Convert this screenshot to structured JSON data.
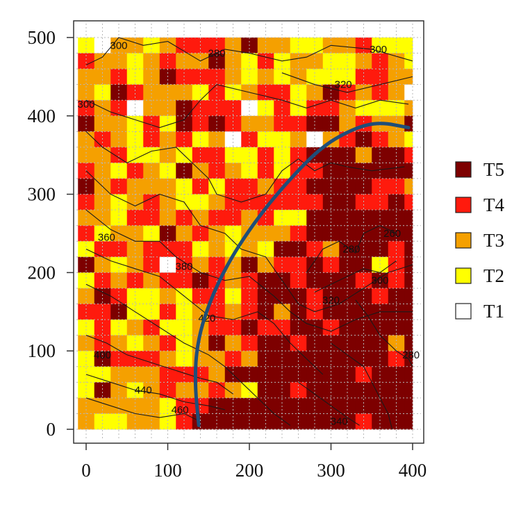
{
  "chart_data": {
    "type": "heatmap",
    "title": "",
    "xlabel": "",
    "ylabel": "",
    "xlim": [
      0,
      400
    ],
    "ylim": [
      0,
      500
    ],
    "x_ticks": [
      "0",
      "100",
      "200",
      "300",
      "400"
    ],
    "y_ticks": [
      "0",
      "100",
      "200",
      "300",
      "400",
      "500"
    ],
    "grid": true,
    "legend_position": "right",
    "categories": [
      {
        "name": "T5",
        "color": "#7d0000"
      },
      {
        "name": "T4",
        "color": "#ff1a0d"
      },
      {
        "name": "T3",
        "color": "#f5a000"
      },
      {
        "name": "T2",
        "color": "#ffff00"
      },
      {
        "name": "T1",
        "color": "#ffffff"
      }
    ],
    "cell_size": 20,
    "grid_cells": [
      "2133234443533223342223",
      "4332343353242332234322",
      "3342354443232322244333",
      "3254333242344235434315",
      "4341335444124244322234",
      "5332425454334455343355",
      "3432434231422313454324",
      "3342232442242455535543",
      "4324325343242445555555",
      "5343332424434455554434",
      "4323432234444445544544",
      "3324434344342255555553",
      "4233253432333455555555",
      "2443444232325543555454",
      "5323414343534454552455",
      "2434344543455455545455",
      "3542232442455545554555",
      "4452242343453545555555",
      "2423422344544554555555",
      "3432342353455455555355",
      "2544432334355555555455",
      "2233344435555555545555",
      "2532343343255455555555",
      "3333324455555555555555",
      "3223324555555555545555"
    ],
    "contours": [
      {
        "level": "300",
        "label_at": [
          40,
          490
        ]
      },
      {
        "level": "280",
        "label_at": [
          160,
          480
        ]
      },
      {
        "level": "300",
        "label_at": [
          358,
          485
        ]
      },
      {
        "level": "320",
        "label_at": [
          315,
          440
        ]
      },
      {
        "level": "300",
        "label_at": [
          0,
          415
        ]
      },
      {
        "level": "360",
        "label_at": [
          25,
          245
        ]
      },
      {
        "level": "380",
        "label_at": [
          120,
          208
        ]
      },
      {
        "level": "420",
        "label_at": [
          148,
          142
        ]
      },
      {
        "level": "400",
        "label_at": [
          20,
          95
        ]
      },
      {
        "level": "440",
        "label_at": [
          70,
          50
        ]
      },
      {
        "level": "460",
        "label_at": [
          115,
          25
        ]
      },
      {
        "level": "320",
        "label_at": [
          300,
          165
        ]
      },
      {
        "level": "300",
        "label_at": [
          360,
          190
        ]
      },
      {
        "level": "280",
        "label_at": [
          325,
          230
        ]
      },
      {
        "level": "260",
        "label_at": [
          375,
          250
        ]
      },
      {
        "level": "280",
        "label_at": [
          398,
          95
        ]
      },
      {
        "level": "340",
        "label_at": [
          310,
          10
        ]
      }
    ],
    "boundary_curve": [
      [
        138,
        5
      ],
      [
        133,
        60
      ],
      [
        136,
        110
      ],
      [
        150,
        160
      ],
      [
        175,
        215
      ],
      [
        210,
        270
      ],
      [
        250,
        320
      ],
      [
        290,
        362
      ],
      [
        330,
        385
      ],
      [
        360,
        392
      ],
      [
        395,
        385
      ]
    ]
  }
}
